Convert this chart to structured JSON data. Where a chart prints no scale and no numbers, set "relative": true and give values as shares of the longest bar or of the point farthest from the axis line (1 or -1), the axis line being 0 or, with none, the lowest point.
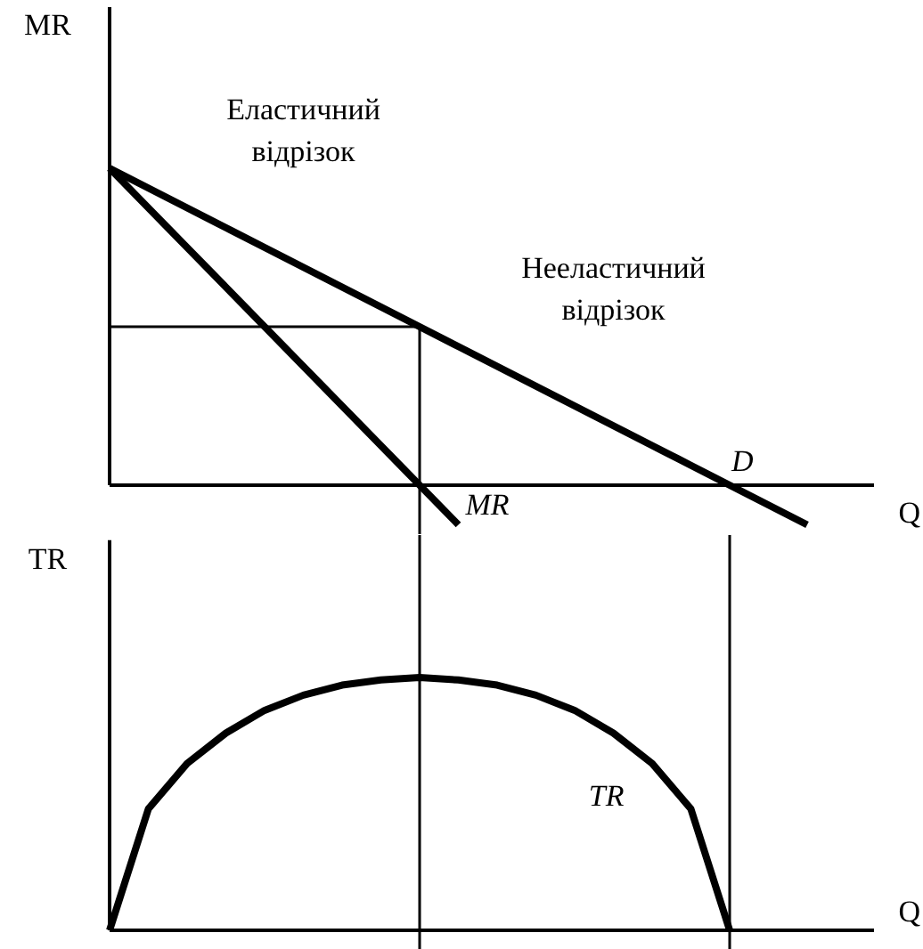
{
  "chart_data": [
    {
      "type": "line",
      "relative": true,
      "ylabel": "MR",
      "xlabel": "Q",
      "categories": [
        null,
        null,
        null,
        null,
        null,
        null,
        null,
        null,
        null,
        null,
        null,
        null,
        null,
        null,
        null,
        null,
        null,
        null,
        null
      ],
      "series": [
        {
          "name": "D",
          "color": "#000000",
          "values": [
            1,
            0.9375,
            0.875,
            0.8125,
            0.75,
            0.6875,
            0.625,
            0.5625,
            0.5,
            0.4375,
            0.375,
            0.3125,
            0.25,
            0.1875,
            0.125,
            0.0625,
            0,
            -0.0625,
            -0.125
          ]
        },
        {
          "name": "MR",
          "color": "#000000",
          "values": [
            1,
            0.875,
            0.75,
            0.625,
            0.5,
            0.375,
            0.25,
            0.125,
            0,
            -0.125,
            null,
            null,
            null,
            null,
            null,
            null,
            null,
            null,
            null
          ]
        },
        {
          "color": "#000000",
          "values": [
            0.5,
            0.5,
            0.5,
            0.5,
            0.5,
            0.5,
            0.5,
            0.5,
            0.5,
            null,
            null,
            null,
            null,
            null,
            null,
            null,
            null,
            null,
            null
          ]
        }
      ],
      "annotations": [
        "Еластичний\nвідрізок",
        "Нееластичний\nвідрізок"
      ]
    },
    {
      "type": "line",
      "relative": true,
      "ylabel": "TR",
      "xlabel": "Q",
      "categories": [
        null,
        null,
        null,
        null,
        null,
        null,
        null,
        null,
        null,
        null,
        null,
        null,
        null,
        null,
        null,
        null,
        null,
        null,
        null
      ],
      "series": [
        {
          "name": "TR",
          "color": "#000000",
          "values": [
            0,
            0.48,
            0.66,
            0.78,
            0.87,
            0.93,
            0.97,
            0.99,
            1,
            0.99,
            0.97,
            0.93,
            0.87,
            0.78,
            0.66,
            0.48,
            0,
            null,
            null
          ]
        }
      ]
    }
  ]
}
